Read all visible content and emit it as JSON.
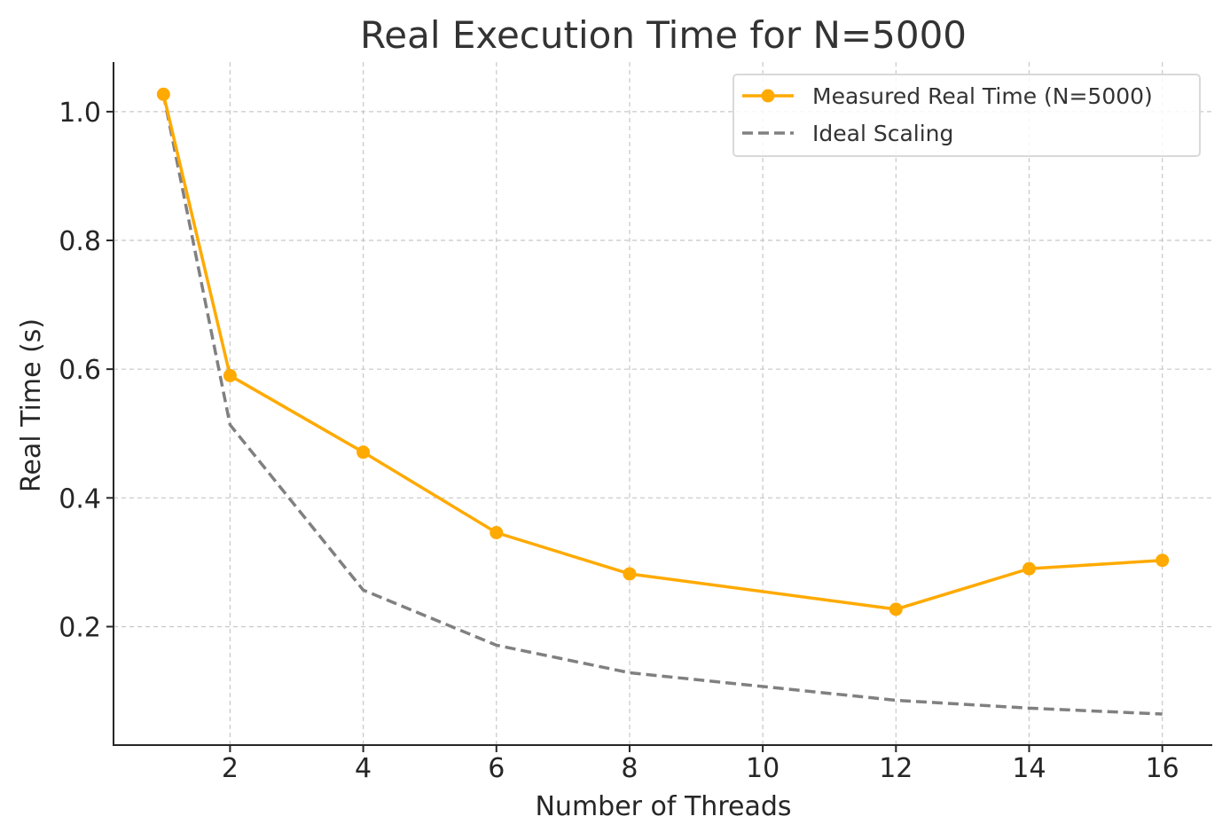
{
  "chart_data": {
    "type": "line",
    "title": "Real Execution Time for N=5000",
    "xlabel": "Number of Threads",
    "ylabel": "Real Time (s)",
    "x": [
      1,
      2,
      4,
      6,
      8,
      12,
      14,
      16
    ],
    "xlim": [
      0.25,
      16.75
    ],
    "ylim": [
      0.016,
      1.077
    ],
    "xticks": [
      2,
      4,
      6,
      8,
      10,
      12,
      14,
      16
    ],
    "xtick_labels": [
      "2",
      "4",
      "6",
      "8",
      "10",
      "12",
      "14",
      "16"
    ],
    "yticks": [
      0.2,
      0.4,
      0.6,
      0.8,
      1.0
    ],
    "ytick_labels": [
      "0.2",
      "0.4",
      "0.6",
      "0.8",
      "1.0"
    ],
    "grid": true,
    "legend_position": "top-right",
    "series": [
      {
        "name": "Measured Real Time (N=5000)",
        "values": [
          1.027,
          0.59,
          0.471,
          0.346,
          0.282,
          0.227,
          0.29,
          0.303
        ],
        "color": "#FFAA00",
        "style": "solid",
        "marker": "circle"
      },
      {
        "name": "Ideal Scaling",
        "values": [
          1.027,
          0.5135,
          0.2568,
          0.1712,
          0.1284,
          0.0856,
          0.0734,
          0.0642
        ],
        "color": "#808080",
        "style": "dashed",
        "marker": "none"
      }
    ]
  }
}
